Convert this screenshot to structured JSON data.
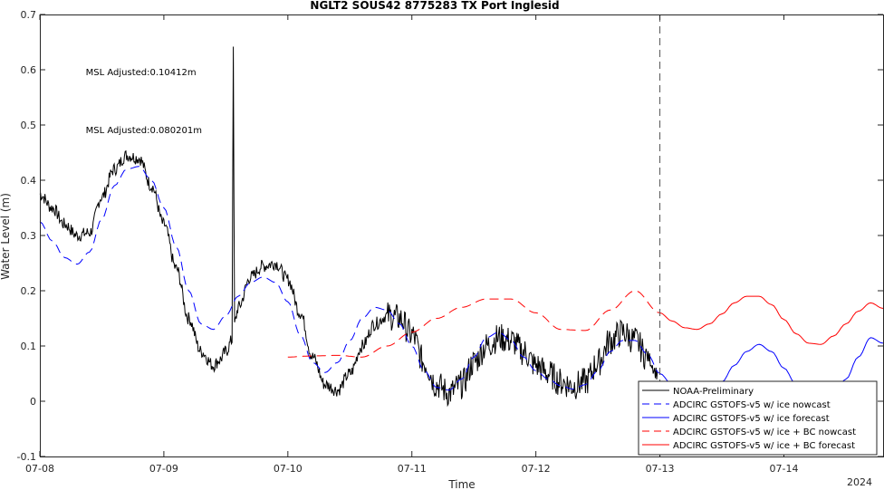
{
  "chart_data": {
    "type": "line",
    "title": "NGLT2 SOUS42 8775283 TX Port Inglesid",
    "xlabel": "Time",
    "ylabel": "Water Level (m)",
    "year_label": "2024",
    "x_unit": "days since 07-08 00:00",
    "xlim": [
      0,
      6.8
    ],
    "ylim": [
      -0.1,
      0.7
    ],
    "x_ticks": [
      0,
      1,
      2,
      3,
      4,
      5,
      6
    ],
    "x_tick_labels": [
      "07-08",
      "07-09",
      "07-10",
      "07-11",
      "07-12",
      "07-13",
      "07-14"
    ],
    "y_ticks": [
      -0.1,
      0,
      0.1,
      0.2,
      0.3,
      0.4,
      0.5,
      0.6,
      0.7
    ],
    "y_tick_labels": [
      "-0.1",
      "0",
      "0.1",
      "0.2",
      "0.3",
      "0.4",
      "0.5",
      "0.6",
      "0.7"
    ],
    "vline_x": 5.0,
    "grid": false,
    "legend_position": "bottom-right",
    "annotations": [
      {
        "text": "MSL Adjusted:0.10412m",
        "x": 0.37,
        "y": 0.59,
        "color": "#0000ff"
      },
      {
        "text": "MSL Adjusted:0.080201m",
        "x": 0.37,
        "y": 0.485,
        "color": "#ff0000"
      }
    ],
    "series": [
      {
        "name": "NOAA-Preliminary",
        "color": "#000000",
        "dash": "solid",
        "noise": 0.012,
        "x": [
          0,
          0.1,
          0.2,
          0.3,
          0.4,
          0.5,
          0.6,
          0.7,
          0.8,
          0.9,
          1.0,
          1.1,
          1.2,
          1.3,
          1.4,
          1.45,
          1.5,
          1.55,
          1.56,
          1.565,
          1.57,
          1.6,
          1.7,
          1.8,
          1.9,
          2.0,
          2.1,
          2.2,
          2.3,
          2.4,
          2.5,
          2.6,
          2.7,
          2.8,
          2.9,
          3.0,
          3.1,
          3.2,
          3.3,
          3.4,
          3.5,
          3.6,
          3.7,
          3.8,
          3.9,
          4.0,
          4.1,
          4.2,
          4.3,
          4.4,
          4.5,
          4.6,
          4.7,
          4.8,
          4.9,
          4.98
        ],
        "y": [
          0.375,
          0.35,
          0.32,
          0.3,
          0.305,
          0.37,
          0.42,
          0.445,
          0.44,
          0.39,
          0.32,
          0.24,
          0.15,
          0.09,
          0.065,
          0.075,
          0.09,
          0.11,
          0.65,
          0.35,
          0.14,
          0.17,
          0.225,
          0.245,
          0.25,
          0.22,
          0.16,
          0.08,
          0.03,
          0.02,
          0.05,
          0.1,
          0.14,
          0.155,
          0.15,
          0.12,
          0.07,
          0.03,
          0.015,
          0.03,
          0.07,
          0.1,
          0.115,
          0.11,
          0.09,
          0.065,
          0.05,
          0.035,
          0.028,
          0.035,
          0.07,
          0.11,
          0.125,
          0.11,
          0.08,
          0.05
        ]
      },
      {
        "name": "ADCIRC GSTOFS-v5  w/ ice nowcast",
        "color": "#0000ff",
        "dash": "dashed",
        "x": [
          0,
          0.1,
          0.2,
          0.3,
          0.4,
          0.5,
          0.6,
          0.7,
          0.8,
          0.9,
          1.0,
          1.1,
          1.2,
          1.3,
          1.4,
          1.5,
          1.6,
          1.7,
          1.8,
          1.9,
          2.0,
          2.1,
          2.2,
          2.3,
          2.4,
          2.5,
          2.6,
          2.7,
          2.8,
          2.9,
          3.0,
          3.1,
          3.2,
          3.3,
          3.4,
          3.5,
          3.6,
          3.7,
          3.8,
          3.9,
          4.0,
          4.1,
          4.2,
          4.3,
          4.4,
          4.5,
          4.6,
          4.7,
          4.8,
          4.9,
          5.0
        ],
        "y": [
          0.325,
          0.29,
          0.26,
          0.248,
          0.27,
          0.33,
          0.39,
          0.42,
          0.425,
          0.4,
          0.35,
          0.28,
          0.2,
          0.14,
          0.13,
          0.155,
          0.19,
          0.215,
          0.225,
          0.215,
          0.18,
          0.12,
          0.07,
          0.052,
          0.07,
          0.11,
          0.15,
          0.17,
          0.165,
          0.14,
          0.1,
          0.055,
          0.025,
          0.02,
          0.04,
          0.08,
          0.115,
          0.125,
          0.11,
          0.08,
          0.055,
          0.04,
          0.028,
          0.022,
          0.03,
          0.055,
          0.09,
          0.11,
          0.11,
          0.085,
          0.05
        ]
      },
      {
        "name": "ADCIRC GSTOFS-v5  w/ ice forecast",
        "color": "#0000ff",
        "dash": "solid",
        "x": [
          5.0,
          5.1,
          5.2,
          5.3,
          5.4,
          5.5,
          5.6,
          5.7,
          5.8,
          5.9,
          6.0,
          6.1,
          6.2,
          6.3,
          6.4,
          6.5,
          6.6,
          6.7,
          6.8
        ],
        "y": [
          0.05,
          0.03,
          0.015,
          0.008,
          0.015,
          0.035,
          0.065,
          0.09,
          0.103,
          0.09,
          0.06,
          0.03,
          0.012,
          0.005,
          0.01,
          0.04,
          0.08,
          0.115,
          0.105
        ]
      },
      {
        "name": "ADCIRC GSTOFS-v5  w/ ice + BC nowcast",
        "color": "#ff0000",
        "dash": "dashed",
        "x": [
          2.0,
          2.2,
          2.4,
          2.6,
          2.8,
          3.0,
          3.2,
          3.4,
          3.6,
          3.8,
          4.0,
          4.2,
          4.4,
          4.6,
          4.8,
          5.0
        ],
        "y": [
          0.08,
          0.082,
          0.083,
          0.08,
          0.1,
          0.125,
          0.15,
          0.17,
          0.185,
          0.185,
          0.16,
          0.13,
          0.128,
          0.165,
          0.2,
          0.16
        ]
      },
      {
        "name": "ADCIRC GSTOFS-v5  w/ ice + BC forecast",
        "color": "#ff0000",
        "dash": "solid",
        "x": [
          5.0,
          5.1,
          5.2,
          5.3,
          5.4,
          5.5,
          5.6,
          5.7,
          5.8,
          5.9,
          6.0,
          6.1,
          6.2,
          6.3,
          6.4,
          6.5,
          6.6,
          6.7,
          6.8
        ],
        "y": [
          0.16,
          0.145,
          0.133,
          0.13,
          0.14,
          0.158,
          0.178,
          0.19,
          0.19,
          0.175,
          0.148,
          0.122,
          0.105,
          0.103,
          0.118,
          0.14,
          0.163,
          0.178,
          0.168
        ]
      }
    ]
  }
}
